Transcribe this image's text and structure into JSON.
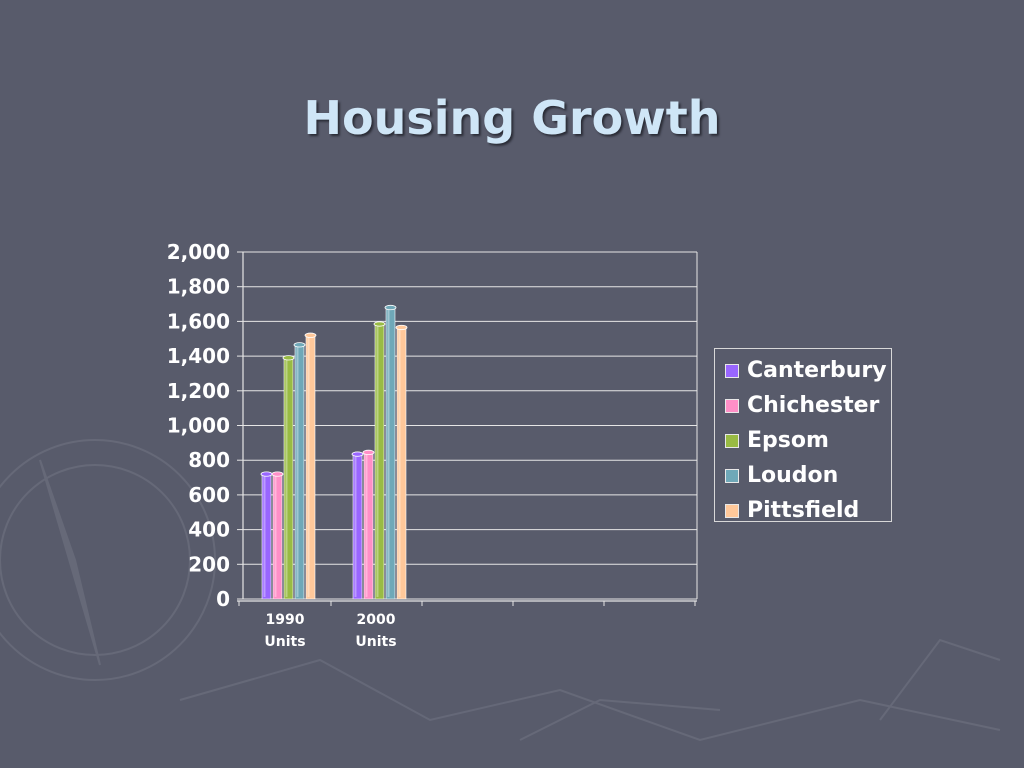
{
  "slide": {
    "title": "Housing Growth"
  },
  "chart_data": {
    "type": "bar",
    "title": "",
    "xlabel": "",
    "ylabel": "",
    "categories": [
      "1990 Units",
      "2000 Units"
    ],
    "category_lines": [
      [
        "1990",
        "Units"
      ],
      [
        "2000",
        "Units"
      ]
    ],
    "ylim": [
      0,
      2000
    ],
    "yticks": [
      "0",
      "200",
      "400",
      "600",
      "800",
      "1,000",
      "1,200",
      "1,400",
      "1,600",
      "1,800",
      "2,000"
    ],
    "grid": true,
    "legend_position": "right",
    "series": [
      {
        "name": "Canterbury",
        "values": [
          720,
          835
        ],
        "color": "#9966ff"
      },
      {
        "name": "Chichester",
        "values": [
          720,
          845
        ],
        "color": "#ff8fc7"
      },
      {
        "name": "Epsom",
        "values": [
          1390,
          1585
        ],
        "color": "#99bb44"
      },
      {
        "name": "Loudon",
        "values": [
          1465,
          1680
        ],
        "color": "#6fa8b8"
      },
      {
        "name": "Pittsfield",
        "values": [
          1520,
          1565
        ],
        "color": "#ffc89a"
      }
    ]
  }
}
